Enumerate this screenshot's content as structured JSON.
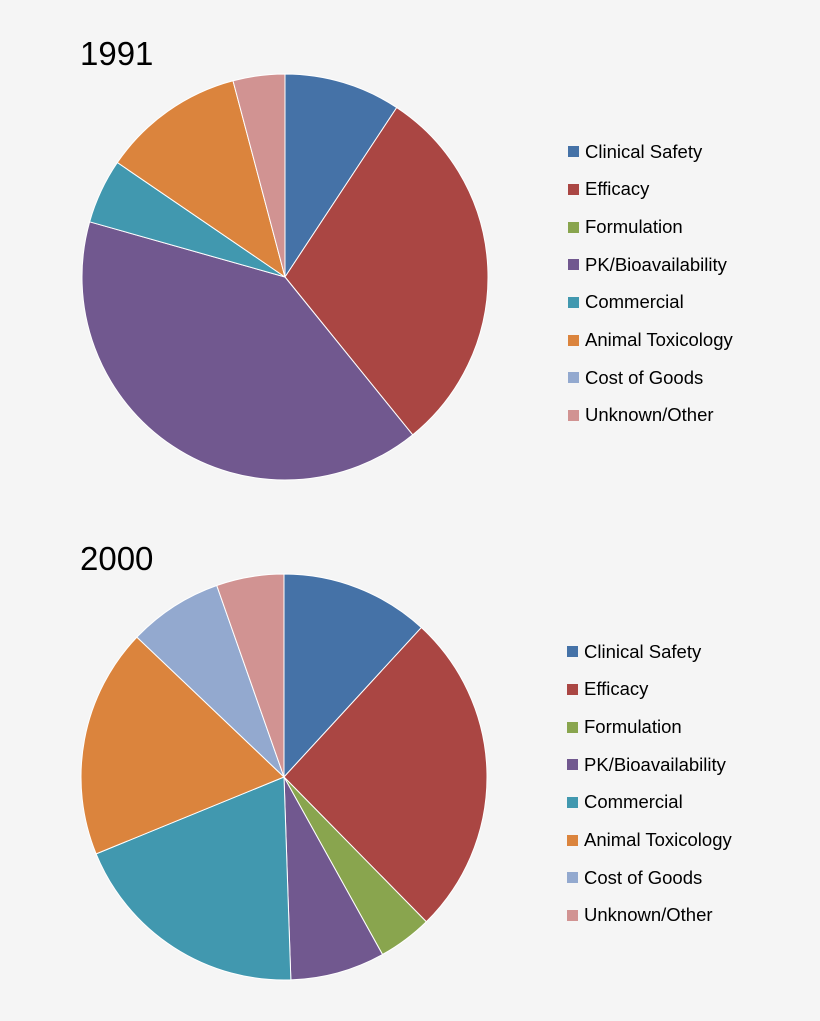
{
  "chart_data": [
    {
      "type": "pie",
      "title": "1991",
      "legend_position": "right",
      "categories": [
        "Clinical Safety",
        "Efficacy",
        "Formulation",
        "PK/Bioavailability",
        "Commercial",
        "Animal Toxicology",
        "Cost of Goods",
        "Unknown/Other"
      ],
      "values": [
        9,
        29,
        0,
        39,
        5,
        11,
        0,
        4
      ],
      "colors": [
        "#4572a7",
        "#aa4643",
        "#89a54e",
        "#71588f",
        "#4198af",
        "#db843d",
        "#93a9cf",
        "#d19392"
      ]
    },
    {
      "type": "pie",
      "title": "2000",
      "legend_position": "right",
      "categories": [
        "Clinical Safety",
        "Efficacy",
        "Formulation",
        "PK/Bioavailability",
        "Commercial",
        "Animal Toxicology",
        "Cost of Goods",
        "Unknown/Other"
      ],
      "values": [
        11,
        24,
        4,
        7,
        18,
        17,
        7,
        5
      ],
      "colors": [
        "#4572a7",
        "#aa4643",
        "#89a54e",
        "#71588f",
        "#4198af",
        "#db843d",
        "#93a9cf",
        "#d19392"
      ]
    }
  ]
}
